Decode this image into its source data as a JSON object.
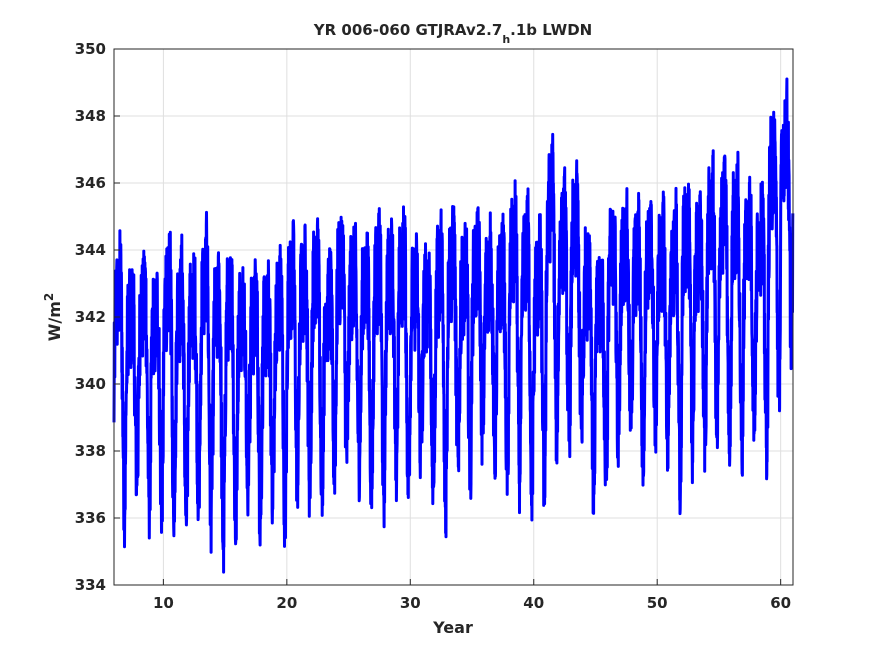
{
  "chart_data": {
    "type": "line",
    "title_main": "YR 006-060 GTJRAv2.7",
    "title_sub": "h",
    "title_end": ".1b LWDN",
    "xlabel": "Year",
    "ylabel_base": "W/m",
    "ylabel_sup": "2",
    "xlim": [
      6,
      61
    ],
    "ylim": [
      334,
      350
    ],
    "xticks": [
      10,
      20,
      30,
      40,
      50,
      60
    ],
    "yticks": [
      334,
      336,
      338,
      340,
      342,
      344,
      346,
      348,
      350
    ],
    "grid": true,
    "line_color": "#0000ff",
    "series": [
      {
        "annual_means": [
          340.8,
          340.6,
          340.7,
          340.3,
          340.9,
          340.5,
          340.6,
          341.0,
          340.1,
          340.4,
          340.7,
          340.3,
          340.4,
          340.5,
          341.3,
          341.2,
          341.4,
          341.0,
          341.8,
          341.5,
          341.2,
          341.4,
          341.5,
          341.6,
          341.3,
          341.1,
          341.2,
          341.9,
          341.4,
          342.1,
          341.7,
          341.5,
          342.1,
          341.8,
          341.4,
          343.5,
          342.7,
          342.8,
          341.4,
          341.0,
          342.2,
          342.6,
          342.0,
          342.4,
          342.2,
          341.8,
          342.6,
          342.3,
          343.0,
          343.2,
          342.9,
          343.0,
          342.6,
          344.5,
          345.6
        ]
      }
    ]
  }
}
